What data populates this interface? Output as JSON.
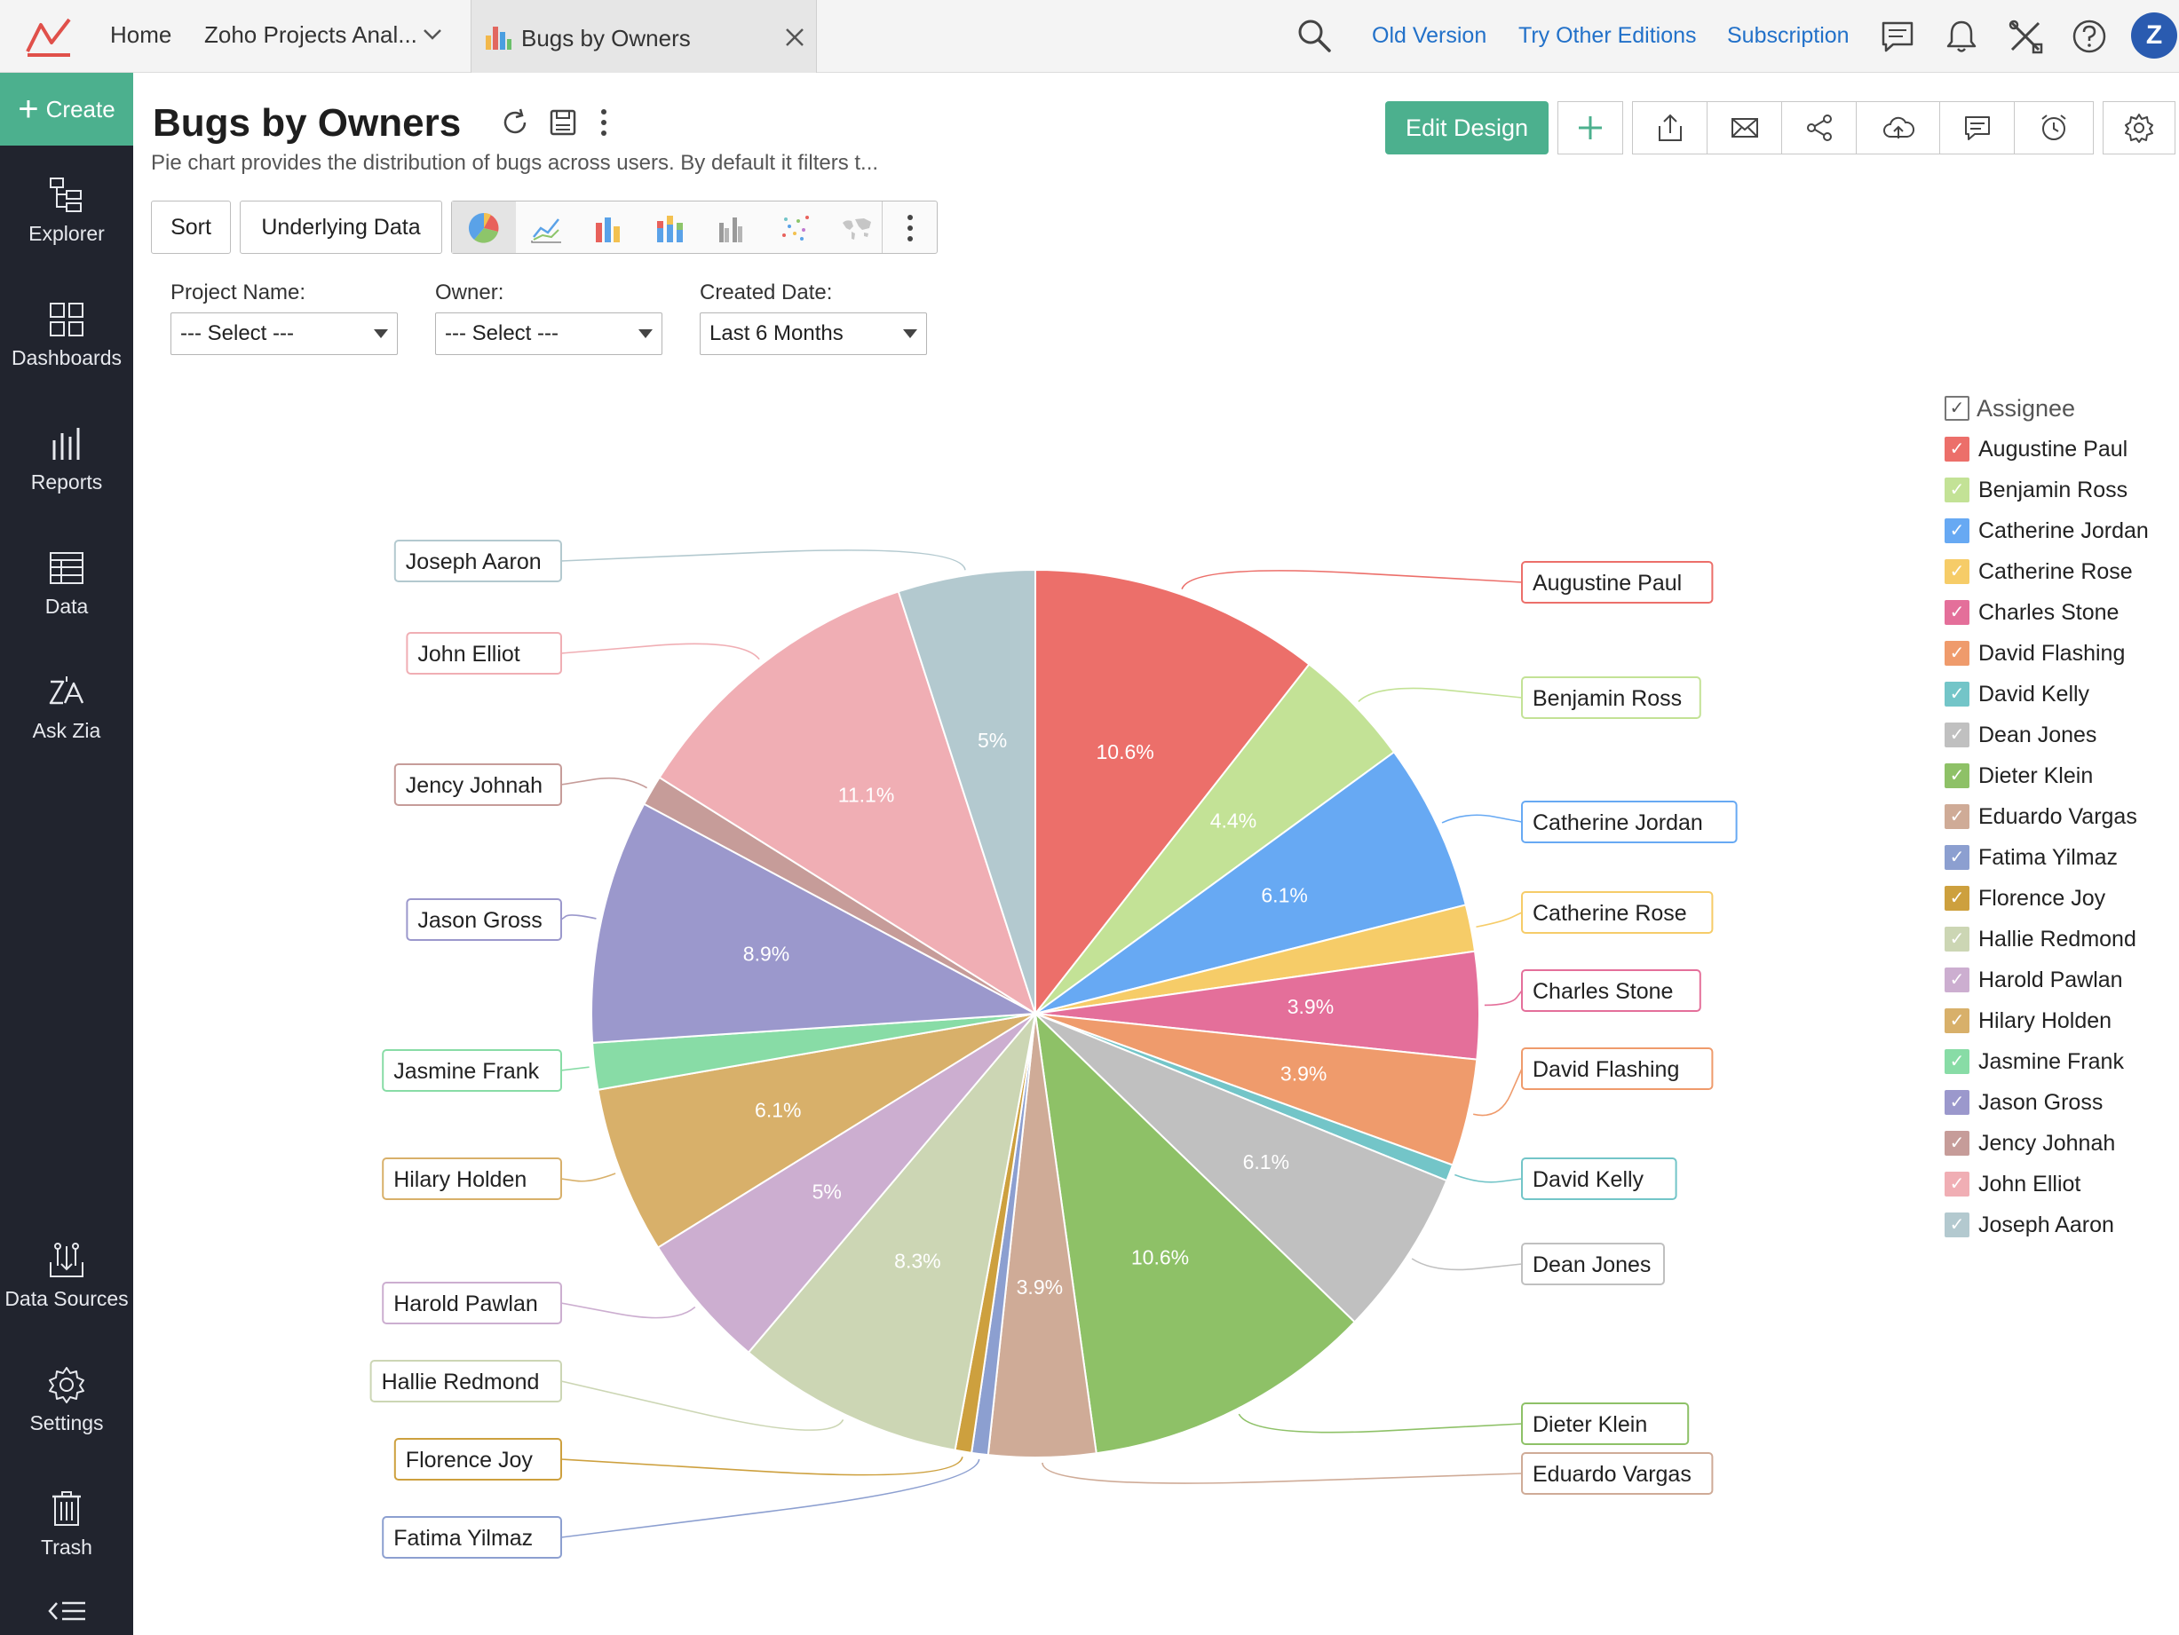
{
  "topbar": {
    "home": "Home",
    "project_tab": "Zoho Projects Anal...",
    "report_tab": "Bugs by Owners",
    "old_version": "Old Version",
    "try_editions": "Try Other Editions",
    "subscription": "Subscription",
    "avatar_letter": "Z"
  },
  "sidebar": {
    "create": "Create",
    "items": [
      {
        "label": "Explorer",
        "icon": "explorer-icon"
      },
      {
        "label": "Dashboards",
        "icon": "dashboards-icon"
      },
      {
        "label": "Reports",
        "icon": "reports-icon"
      },
      {
        "label": "Data",
        "icon": "data-icon"
      },
      {
        "label": "Ask Zia",
        "icon": "ask-zia-icon"
      },
      {
        "label": "Data Sources",
        "icon": "data-sources-icon"
      },
      {
        "label": "Settings",
        "icon": "settings-icon"
      },
      {
        "label": "Trash",
        "icon": "trash-icon"
      }
    ]
  },
  "header": {
    "title": "Bugs by Owners",
    "description": "Pie chart provides the distribution of bugs across users. By default it filters t...",
    "edit_design": "Edit Design"
  },
  "toolbar": {
    "sort": "Sort",
    "underlying_data": "Underlying Data"
  },
  "filters": [
    {
      "label": "Project Name:",
      "value": "--- Select ---"
    },
    {
      "label": "Owner:",
      "value": "--- Select ---"
    },
    {
      "label": "Created Date:",
      "value": "Last 6 Months"
    }
  ],
  "legend": {
    "title": "Assignee"
  },
  "chart_data": {
    "type": "pie",
    "legend_position": "right",
    "legend_title": "Assignee",
    "slices": [
      {
        "name": "Augustine Paul",
        "value": 10.6,
        "label": "10.6%",
        "color": "#ec6f6a"
      },
      {
        "name": "Benjamin Ross",
        "value": 4.4,
        "label": "4.4%",
        "color": "#c3e296"
      },
      {
        "name": "Catherine Jordan",
        "value": 6.1,
        "label": "6.1%",
        "color": "#67a9f3"
      },
      {
        "name": "Catherine Rose",
        "value": 1.7,
        "label": "",
        "color": "#f6cc68"
      },
      {
        "name": "Charles Stone",
        "value": 3.9,
        "label": "3.9%",
        "color": "#e46f9a"
      },
      {
        "name": "David Flashing",
        "value": 3.9,
        "label": "3.9%",
        "color": "#ef9b6c"
      },
      {
        "name": "David Kelly",
        "value": 0.6,
        "label": "",
        "color": "#73c5c8"
      },
      {
        "name": "Dean Jones",
        "value": 6.1,
        "label": "6.1%",
        "color": "#c0c0c0"
      },
      {
        "name": "Dieter Klein",
        "value": 10.6,
        "label": "10.6%",
        "color": "#8ec167"
      },
      {
        "name": "Eduardo Vargas",
        "value": 3.9,
        "label": "3.9%",
        "color": "#cfab97"
      },
      {
        "name": "Fatima Yilmaz",
        "value": 0.6,
        "label": "",
        "color": "#8c9fd0"
      },
      {
        "name": "Florence Joy",
        "value": 0.6,
        "label": "",
        "color": "#cda03e"
      },
      {
        "name": "Hallie Redmond",
        "value": 8.3,
        "label": "8.3%",
        "color": "#ccd6b4"
      },
      {
        "name": "Harold Pawlan",
        "value": 5.0,
        "label": "5%",
        "color": "#ccaed0"
      },
      {
        "name": "Hilary Holden",
        "value": 6.1,
        "label": "6.1%",
        "color": "#d8b06a"
      },
      {
        "name": "Jasmine Frank",
        "value": 1.7,
        "label": "",
        "color": "#88dca6"
      },
      {
        "name": "Jason Gross",
        "value": 8.9,
        "label": "8.9%",
        "color": "#9b98cc"
      },
      {
        "name": "Jency Johnah",
        "value": 1.1,
        "label": "",
        "color": "#c69c99"
      },
      {
        "name": "John Elliot",
        "value": 11.1,
        "label": "11.1%",
        "color": "#f0aeb4"
      },
      {
        "name": "Joseph Aaron",
        "value": 5.0,
        "label": "5%",
        "color": "#b3c9cf"
      }
    ]
  }
}
